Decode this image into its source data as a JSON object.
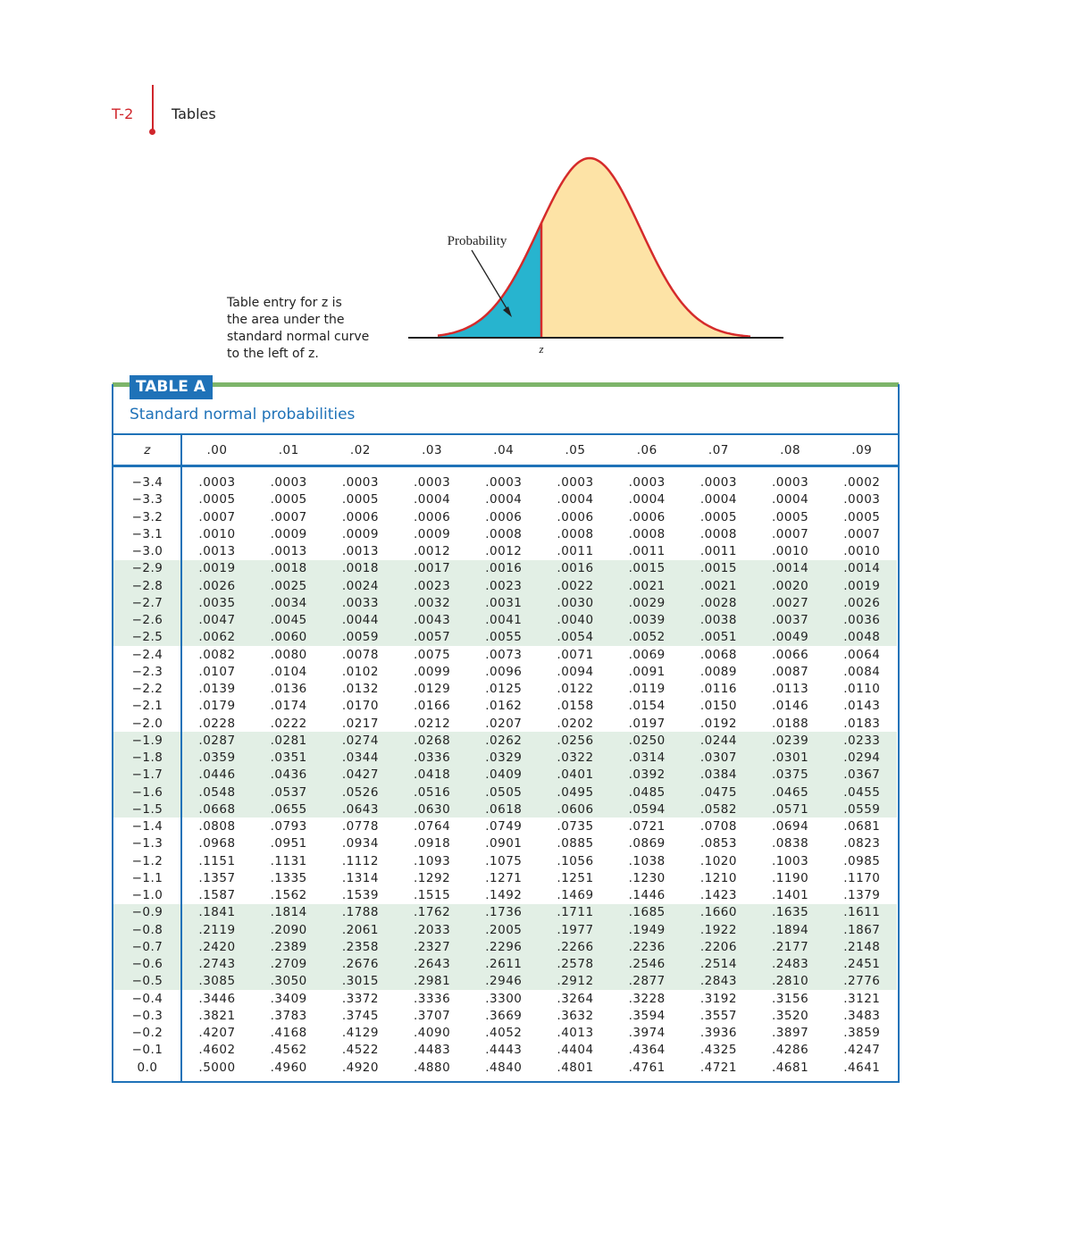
{
  "header": {
    "page": "T-2",
    "section": "Tables"
  },
  "figure": {
    "caption_lines": [
      "Table entry for z is",
      "the area under the",
      "standard normal curve",
      "to the left of z."
    ],
    "probability_label": "Probability",
    "z_label": "z"
  },
  "table": {
    "label": "TABLE A",
    "title": "Standard normal probabilities",
    "columns": [
      "z",
      ".00",
      ".01",
      ".02",
      ".03",
      ".04",
      ".05",
      ".06",
      ".07",
      ".08",
      ".09"
    ],
    "rows": [
      [
        "−3.4",
        ".0003",
        ".0003",
        ".0003",
        ".0003",
        ".0003",
        ".0003",
        ".0003",
        ".0003",
        ".0003",
        ".0002"
      ],
      [
        "−3.3",
        ".0005",
        ".0005",
        ".0005",
        ".0004",
        ".0004",
        ".0004",
        ".0004",
        ".0004",
        ".0004",
        ".0003"
      ],
      [
        "−3.2",
        ".0007",
        ".0007",
        ".0006",
        ".0006",
        ".0006",
        ".0006",
        ".0006",
        ".0005",
        ".0005",
        ".0005"
      ],
      [
        "−3.1",
        ".0010",
        ".0009",
        ".0009",
        ".0009",
        ".0008",
        ".0008",
        ".0008",
        ".0008",
        ".0007",
        ".0007"
      ],
      [
        "−3.0",
        ".0013",
        ".0013",
        ".0013",
        ".0012",
        ".0012",
        ".0011",
        ".0011",
        ".0011",
        ".0010",
        ".0010"
      ],
      [
        "−2.9",
        ".0019",
        ".0018",
        ".0018",
        ".0017",
        ".0016",
        ".0016",
        ".0015",
        ".0015",
        ".0014",
        ".0014"
      ],
      [
        "−2.8",
        ".0026",
        ".0025",
        ".0024",
        ".0023",
        ".0023",
        ".0022",
        ".0021",
        ".0021",
        ".0020",
        ".0019"
      ],
      [
        "−2.7",
        ".0035",
        ".0034",
        ".0033",
        ".0032",
        ".0031",
        ".0030",
        ".0029",
        ".0028",
        ".0027",
        ".0026"
      ],
      [
        "−2.6",
        ".0047",
        ".0045",
        ".0044",
        ".0043",
        ".0041",
        ".0040",
        ".0039",
        ".0038",
        ".0037",
        ".0036"
      ],
      [
        "−2.5",
        ".0062",
        ".0060",
        ".0059",
        ".0057",
        ".0055",
        ".0054",
        ".0052",
        ".0051",
        ".0049",
        ".0048"
      ],
      [
        "−2.4",
        ".0082",
        ".0080",
        ".0078",
        ".0075",
        ".0073",
        ".0071",
        ".0069",
        ".0068",
        ".0066",
        ".0064"
      ],
      [
        "−2.3",
        ".0107",
        ".0104",
        ".0102",
        ".0099",
        ".0096",
        ".0094",
        ".0091",
        ".0089",
        ".0087",
        ".0084"
      ],
      [
        "−2.2",
        ".0139",
        ".0136",
        ".0132",
        ".0129",
        ".0125",
        ".0122",
        ".0119",
        ".0116",
        ".0113",
        ".0110"
      ],
      [
        "−2.1",
        ".0179",
        ".0174",
        ".0170",
        ".0166",
        ".0162",
        ".0158",
        ".0154",
        ".0150",
        ".0146",
        ".0143"
      ],
      [
        "−2.0",
        ".0228",
        ".0222",
        ".0217",
        ".0212",
        ".0207",
        ".0202",
        ".0197",
        ".0192",
        ".0188",
        ".0183"
      ],
      [
        "−1.9",
        ".0287",
        ".0281",
        ".0274",
        ".0268",
        ".0262",
        ".0256",
        ".0250",
        ".0244",
        ".0239",
        ".0233"
      ],
      [
        "−1.8",
        ".0359",
        ".0351",
        ".0344",
        ".0336",
        ".0329",
        ".0322",
        ".0314",
        ".0307",
        ".0301",
        ".0294"
      ],
      [
        "−1.7",
        ".0446",
        ".0436",
        ".0427",
        ".0418",
        ".0409",
        ".0401",
        ".0392",
        ".0384",
        ".0375",
        ".0367"
      ],
      [
        "−1.6",
        ".0548",
        ".0537",
        ".0526",
        ".0516",
        ".0505",
        ".0495",
        ".0485",
        ".0475",
        ".0465",
        ".0455"
      ],
      [
        "−1.5",
        ".0668",
        ".0655",
        ".0643",
        ".0630",
        ".0618",
        ".0606",
        ".0594",
        ".0582",
        ".0571",
        ".0559"
      ],
      [
        "−1.4",
        ".0808",
        ".0793",
        ".0778",
        ".0764",
        ".0749",
        ".0735",
        ".0721",
        ".0708",
        ".0694",
        ".0681"
      ],
      [
        "−1.3",
        ".0968",
        ".0951",
        ".0934",
        ".0918",
        ".0901",
        ".0885",
        ".0869",
        ".0853",
        ".0838",
        ".0823"
      ],
      [
        "−1.2",
        ".1151",
        ".1131",
        ".1112",
        ".1093",
        ".1075",
        ".1056",
        ".1038",
        ".1020",
        ".1003",
        ".0985"
      ],
      [
        "−1.1",
        ".1357",
        ".1335",
        ".1314",
        ".1292",
        ".1271",
        ".1251",
        ".1230",
        ".1210",
        ".1190",
        ".1170"
      ],
      [
        "−1.0",
        ".1587",
        ".1562",
        ".1539",
        ".1515",
        ".1492",
        ".1469",
        ".1446",
        ".1423",
        ".1401",
        ".1379"
      ],
      [
        "−0.9",
        ".1841",
        ".1814",
        ".1788",
        ".1762",
        ".1736",
        ".1711",
        ".1685",
        ".1660",
        ".1635",
        ".1611"
      ],
      [
        "−0.8",
        ".2119",
        ".2090",
        ".2061",
        ".2033",
        ".2005",
        ".1977",
        ".1949",
        ".1922",
        ".1894",
        ".1867"
      ],
      [
        "−0.7",
        ".2420",
        ".2389",
        ".2358",
        ".2327",
        ".2296",
        ".2266",
        ".2236",
        ".2206",
        ".2177",
        ".2148"
      ],
      [
        "−0.6",
        ".2743",
        ".2709",
        ".2676",
        ".2643",
        ".2611",
        ".2578",
        ".2546",
        ".2514",
        ".2483",
        ".2451"
      ],
      [
        "−0.5",
        ".3085",
        ".3050",
        ".3015",
        ".2981",
        ".2946",
        ".2912",
        ".2877",
        ".2843",
        ".2810",
        ".2776"
      ],
      [
        "−0.4",
        ".3446",
        ".3409",
        ".3372",
        ".3336",
        ".3300",
        ".3264",
        ".3228",
        ".3192",
        ".3156",
        ".3121"
      ],
      [
        "−0.3",
        ".3821",
        ".3783",
        ".3745",
        ".3707",
        ".3669",
        ".3632",
        ".3594",
        ".3557",
        ".3520",
        ".3483"
      ],
      [
        "−0.2",
        ".4207",
        ".4168",
        ".4129",
        ".4090",
        ".4052",
        ".4013",
        ".3974",
        ".3936",
        ".3897",
        ".3859"
      ],
      [
        "−0.1",
        ".4602",
        ".4562",
        ".4522",
        ".4483",
        ".4443",
        ".4404",
        ".4364",
        ".4325",
        ".4286",
        ".4247"
      ],
      [
        "0.0",
        ".5000",
        ".4960",
        ".4920",
        ".4880",
        ".4840",
        ".4801",
        ".4761",
        ".4721",
        ".4681",
        ".4641"
      ]
    ]
  }
}
